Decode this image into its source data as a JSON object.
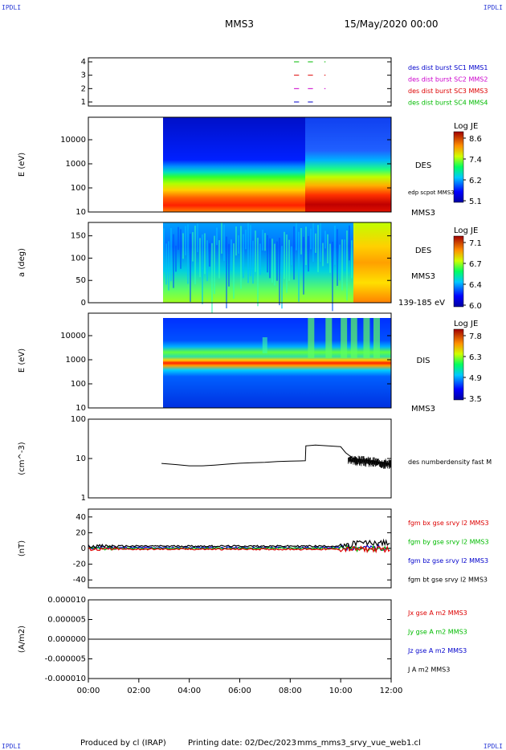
{
  "corners": {
    "tl": "IPDLI",
    "tr": "IPDLI",
    "bl": "IPDLI",
    "br": "IPDLI"
  },
  "header": {
    "spacecraft": "MMS3",
    "date": "15/May/2020 00:00"
  },
  "footer": {
    "produced_by": "Produced by cl (IRAP)",
    "printing_date": "Printing date: 02/Dec/2023",
    "filename": "mms_mms3_srvy_vue_web1.cl"
  },
  "colors": {
    "blue": "#0000cc",
    "magenta": "#cc00cc",
    "red": "#dd0000",
    "green": "#00bb00",
    "black": "#000000"
  },
  "chart_data": [
    {
      "type": "scatter",
      "id": "burst",
      "yticks": [
        "1",
        "2",
        "3",
        "4"
      ],
      "ylim": [
        0.7,
        4.3
      ],
      "legend": [
        {
          "label": "des dist burst SC1 MMS1",
          "color": "#0000cc"
        },
        {
          "label": "des dist burst SC2 MMS2",
          "color": "#cc00cc"
        },
        {
          "label": "des dist burst SC3 MMS3",
          "color": "#dd0000"
        },
        {
          "label": "des dist burst SC4 MMS4",
          "color": "#00bb00"
        }
      ],
      "segments": [
        {
          "sc": 4,
          "t": [
            8.15,
            8.35
          ]
        },
        {
          "sc": 4,
          "t": [
            8.7,
            8.9
          ]
        },
        {
          "sc": 4,
          "t": [
            9.35,
            9.4
          ]
        },
        {
          "sc": 3,
          "t": [
            8.15,
            8.35
          ]
        },
        {
          "sc": 3,
          "t": [
            8.7,
            8.9
          ]
        },
        {
          "sc": 3,
          "t": [
            9.35,
            9.4
          ]
        },
        {
          "sc": 2,
          "t": [
            8.15,
            8.35
          ]
        },
        {
          "sc": 2,
          "t": [
            8.7,
            8.9
          ]
        },
        {
          "sc": 2,
          "t": [
            9.35,
            9.4
          ]
        },
        {
          "sc": 1,
          "t": [
            8.15,
            8.35
          ]
        },
        {
          "sc": 1,
          "t": [
            8.7,
            8.9
          ]
        }
      ]
    },
    {
      "type": "heatmap",
      "id": "des_energy",
      "ylabel": "E (eV)",
      "yticks": [
        "10",
        "100",
        "1000",
        "10000"
      ],
      "side_label": "DES",
      "overlay_label": "edp scpot MMS3",
      "bottom_label": "MMS3",
      "colorbar": {
        "title": "Log JE",
        "ticks": [
          "8.6",
          "7.4",
          "6.2",
          "5.1"
        ]
      },
      "data_start": 2.9
    },
    {
      "type": "heatmap",
      "id": "des_pitch",
      "ylabel": "a (deg)",
      "yticks": [
        "0",
        "50",
        "100",
        "150"
      ],
      "side_label": "DES",
      "bottom_label": "MMS3",
      "energy_label": "139-185 eV",
      "colorbar": {
        "title": "Log JE",
        "ticks": [
          "7.1",
          "6.7",
          "6.4",
          "6.0"
        ]
      },
      "data_start": 2.9
    },
    {
      "type": "heatmap",
      "id": "dis_energy",
      "ylabel": "E (eV)",
      "yticks": [
        "10",
        "100",
        "1000",
        "10000"
      ],
      "side_label": "DIS",
      "bottom_label": "MMS3",
      "colorbar": {
        "title": "Log JE",
        "ticks": [
          "7.8",
          "6.3",
          "4.9",
          "3.5"
        ]
      },
      "data_start": 2.9
    },
    {
      "type": "line",
      "id": "density",
      "ylabel": "(cm^-3)",
      "yticks": [
        "1",
        "10",
        "100"
      ],
      "legend": [
        {
          "label": "des numberdensity fast M",
          "color": "#000000"
        }
      ],
      "series": [
        {
          "x": [
            2.9,
            3.5,
            4.0,
            4.5,
            5.0,
            5.5,
            6.0,
            6.5,
            7.0,
            7.5,
            8.0,
            8.4,
            8.6,
            8.62,
            9.0,
            9.5,
            10.0,
            10.2,
            10.5,
            11.0,
            11.5,
            12.0
          ],
          "y": [
            7.5,
            7.0,
            6.5,
            6.5,
            6.8,
            7.2,
            7.6,
            7.8,
            8.0,
            8.4,
            8.6,
            8.7,
            8.8,
            21,
            22,
            21,
            20,
            14,
            10,
            9,
            8,
            7
          ]
        }
      ]
    },
    {
      "type": "line",
      "id": "fgm",
      "ylabel": "(nT)",
      "yticks": [
        "-40",
        "-20",
        "0",
        "20",
        "40"
      ],
      "ylim": [
        -50,
        50
      ],
      "legend": [
        {
          "label": "fgm bx gse srvy l2 MMS3",
          "color": "#dd0000"
        },
        {
          "label": "fgm by gse srvy l2 MMS3",
          "color": "#00bb00"
        },
        {
          "label": "fgm bz gse srvy l2 MMS3",
          "color": "#0000cc"
        },
        {
          "label": "fgm bt gse srvy l2 MMS3",
          "color": "#000000"
        }
      ]
    },
    {
      "type": "line",
      "id": "current",
      "ylabel": "(A/m2)",
      "yticks": [
        "-0.000010",
        "-0.000005",
        "0.000000",
        "0.000005",
        "0.000010"
      ],
      "ylim": [
        -1e-05,
        1e-05
      ],
      "legend": [
        {
          "label": "Jx gse A m2 MMS3",
          "color": "#dd0000"
        },
        {
          "label": "Jy gse A m2 MMS3",
          "color": "#00bb00"
        },
        {
          "label": "Jz gse A m2 MMS3",
          "color": "#0000cc"
        },
        {
          "label": "J A m2 MMS3",
          "color": "#000000"
        }
      ]
    }
  ],
  "time_axis": {
    "ticks": [
      "00:00",
      "02:00",
      "04:00",
      "06:00",
      "08:00",
      "10:00",
      "12:00"
    ],
    "range": [
      0,
      12
    ]
  }
}
